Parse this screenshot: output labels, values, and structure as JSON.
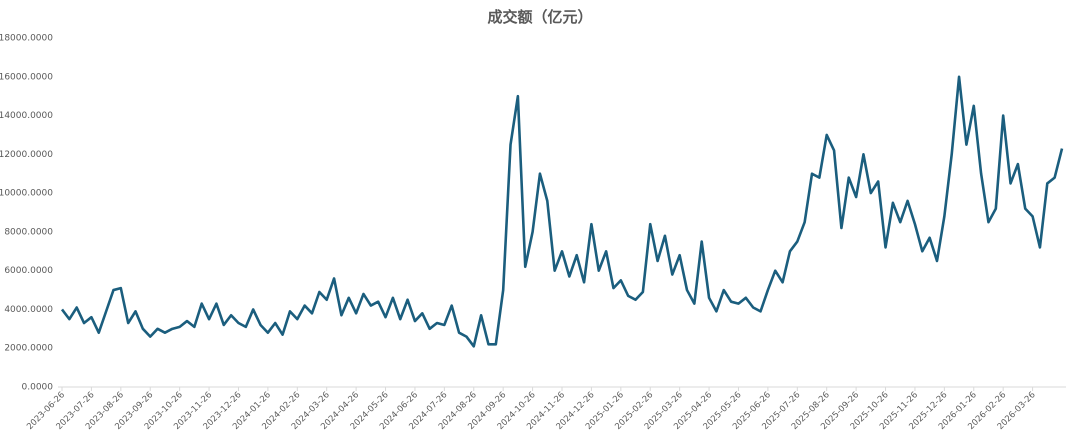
{
  "chart_data": {
    "type": "line",
    "title": "成交额（亿元）",
    "color": "#1b5e7e",
    "grid": false,
    "ylim": [
      0,
      18000
    ],
    "yticks": [
      {
        "value": 0,
        "label": "0.0000"
      },
      {
        "value": 2000,
        "label": "2000.0000"
      },
      {
        "value": 4000,
        "label": "4000.0000"
      },
      {
        "value": 6000,
        "label": "6000.0000"
      },
      {
        "value": 8000,
        "label": "8000.0000"
      },
      {
        "value": 10000,
        "label": "10000.0000"
      },
      {
        "value": 12000,
        "label": "12000.0000"
      },
      {
        "value": 14000,
        "label": "14000.0000"
      },
      {
        "value": 16000,
        "label": "16000.0000"
      },
      {
        "value": 18000,
        "label": "18000.0000"
      }
    ],
    "categories": [
      "2023-06-26",
      null,
      null,
      null,
      "2023-07-26",
      null,
      null,
      null,
      "2023-08-26",
      null,
      null,
      null,
      "2023-09-26",
      null,
      null,
      null,
      "2023-10-26",
      null,
      null,
      null,
      "2023-11-26",
      null,
      null,
      null,
      "2023-12-26",
      null,
      null,
      null,
      "2024-01-26",
      null,
      null,
      null,
      "2024-02-26",
      null,
      null,
      null,
      "2024-03-26",
      null,
      null,
      null,
      "2024-04-26",
      null,
      null,
      null,
      "2024-05-26",
      null,
      null,
      null,
      "2024-06-26",
      null,
      null,
      null,
      "2024-07-26",
      null,
      null,
      null,
      "2024-08-26",
      null,
      null,
      null,
      "2024-09-26",
      null,
      null,
      null,
      "2024-10-26",
      null,
      null,
      null,
      "2024-11-26",
      null,
      null,
      null,
      "2024-12-26",
      null,
      null,
      null,
      "2025-01-26",
      null,
      null,
      null,
      "2025-02-26",
      null,
      null,
      null,
      "2025-03-26",
      null,
      null,
      null,
      "2025-04-26",
      null,
      null,
      null,
      "2025-05-26",
      null,
      null,
      null,
      "2025-06-26",
      null,
      null,
      null,
      "2025-07-26",
      null,
      null,
      null,
      "2025-08-26",
      null,
      null,
      null,
      "2025-09-26",
      null,
      null,
      null,
      "2025-10-26",
      null,
      null,
      null,
      "2025-11-26",
      null,
      null,
      null,
      "2025-12-26",
      null,
      null,
      null,
      "2026-01-26",
      null,
      null,
      null,
      "2026-02-26",
      null,
      null,
      null,
      "2026-03-26",
      null,
      null,
      null,
      null
    ],
    "values": [
      4000,
      3500,
      4100,
      3300,
      3600,
      2800,
      3900,
      5000,
      5100,
      3300,
      3900,
      3000,
      2600,
      3000,
      2800,
      3000,
      3100,
      3400,
      3100,
      4300,
      3500,
      4300,
      3200,
      3700,
      3300,
      3100,
      4000,
      3200,
      2800,
      3300,
      2700,
      3900,
      3500,
      4200,
      3800,
      4900,
      4500,
      5600,
      3700,
      4600,
      3800,
      4800,
      4200,
      4400,
      3600,
      4600,
      3500,
      4500,
      3400,
      3800,
      3000,
      3300,
      3200,
      4200,
      2800,
      2600,
      2100,
      3700,
      2200,
      2200,
      5000,
      12500,
      15000,
      6200,
      8000,
      11000,
      9600,
      6000,
      7000,
      5700,
      6800,
      5400,
      8400,
      6000,
      7000,
      5100,
      5500,
      4700,
      4500,
      4900,
      8400,
      6500,
      7800,
      5800,
      6800,
      5000,
      4300,
      7500,
      4600,
      3900,
      5000,
      4400,
      4300,
      4600,
      4100,
      3900,
      5000,
      6000,
      5400,
      7000,
      7500,
      8500,
      11000,
      10800,
      13000,
      12200,
      8200,
      10800,
      9800,
      12000,
      10000,
      10600,
      7200,
      9500,
      8500,
      9600,
      8400,
      7000,
      7700,
      6500,
      8800,
      12000,
      16000,
      12500,
      14500,
      11000,
      8500,
      9200,
      14000,
      10500,
      11500,
      9200,
      8800,
      7200,
      10500,
      10800,
      12300
    ]
  }
}
